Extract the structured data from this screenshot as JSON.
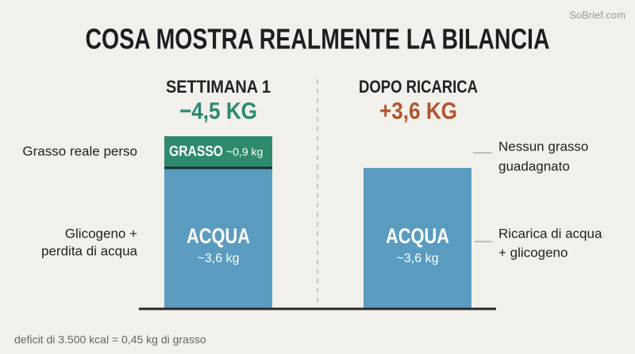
{
  "watermark": "SoBrief.com",
  "title": "COSA MOSTRA REALMENTE LA BILANCIA",
  "left": {
    "header": "SETTIMANA 1",
    "change": "−4,5 KG",
    "fat_label": "GRASSO",
    "fat_amount": "~0,9 kg",
    "water_label": "ACQUA",
    "water_amount": "~3,6 kg",
    "note_top": "Grasso reale perso",
    "note_bottom": [
      "Glicogeno +",
      "perdita di acqua"
    ]
  },
  "right": {
    "header": "DOPO RICARICA",
    "change": "+3,6 KG",
    "water_label": "ACQUA",
    "water_amount": "~3,6 kg",
    "note_top": [
      "Nessun grasso",
      "guadagnato"
    ],
    "note_bottom": [
      "Ricarica di acqua",
      "+ glicogeno"
    ]
  },
  "footer": "deficit di 3.500 kcal = 0,45 kg di grasso"
}
